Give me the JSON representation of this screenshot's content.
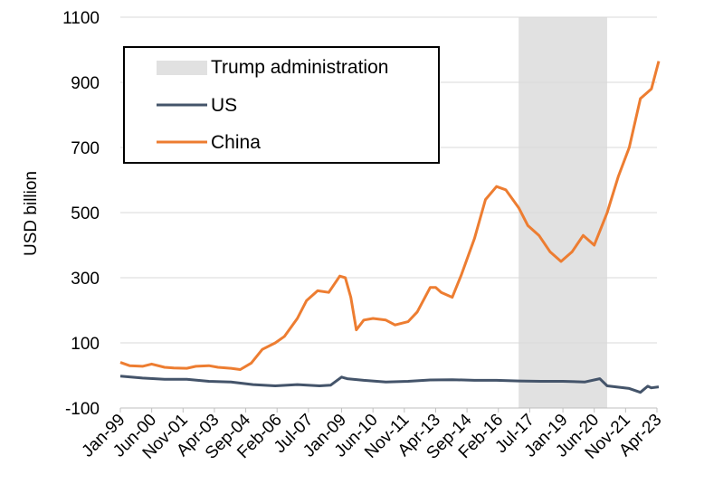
{
  "chart_data": {
    "type": "line",
    "title": "",
    "xlabel": "",
    "ylabel": "USD billion",
    "ylim": [
      -100,
      1100
    ],
    "yticks": [
      1100,
      900,
      700,
      500,
      300,
      100,
      -100
    ],
    "xlim": [
      "Jan-99",
      "Apr-23"
    ],
    "xticks": [
      "Jan-99",
      "Jun-00",
      "Nov-01",
      "Apr-03",
      "Sep-04",
      "Feb-06",
      "Jul-07",
      "Jan-09",
      "Jun-10",
      "Nov-11",
      "Apr-13",
      "Sep-14",
      "Feb-16",
      "Jul-17",
      "Jan-19",
      "Jun-20",
      "Nov-21",
      "Apr-23"
    ],
    "grid": "horizontal",
    "legend_position": "top-left",
    "shaded_period": {
      "name": "Trump administration",
      "start": "Jan-17",
      "end": "Jan-21",
      "color": "#e1e1e1"
    },
    "series": [
      {
        "name": "US",
        "color": "#44546a",
        "x": [
          "Jan-99",
          "Jan-00",
          "Jan-01",
          "Jan-02",
          "Jan-03",
          "Jan-04",
          "Jan-05",
          "Jan-06",
          "Jan-07",
          "Jan-08",
          "Jul-08",
          "Jan-09",
          "Apr-09",
          "Jan-10",
          "Jan-11",
          "Jan-12",
          "Jan-13",
          "Jan-14",
          "Jan-15",
          "Jan-16",
          "Jan-17",
          "Jan-18",
          "Jan-19",
          "Jan-20",
          "Sep-20",
          "Jan-21",
          "Jan-22",
          "Jul-22",
          "Nov-22",
          "Jan-23",
          "May-23"
        ],
        "values": [
          -2,
          -8,
          -12,
          -12,
          -18,
          -20,
          -28,
          -32,
          -28,
          -32,
          -30,
          -5,
          -10,
          -15,
          -20,
          -18,
          -14,
          -13,
          -15,
          -15,
          -17,
          -18,
          -18,
          -20,
          -10,
          -32,
          -40,
          -52,
          -33,
          -38,
          -35
        ]
      },
      {
        "name": "China",
        "color": "#ed7d31",
        "x": [
          "Jan-99",
          "Jun-99",
          "Jan-00",
          "Jun-00",
          "Jan-01",
          "Jun-01",
          "Jan-02",
          "Jun-02",
          "Jan-03",
          "Jun-03",
          "Jan-04",
          "Jun-04",
          "Dec-04",
          "Jun-05",
          "Jan-06",
          "Jun-06",
          "Jan-07",
          "Jun-07",
          "Dec-07",
          "Jun-08",
          "Dec-08",
          "Mar-09",
          "Jun-09",
          "Sep-09",
          "Jan-10",
          "Jun-10",
          "Jan-11",
          "Jun-11",
          "Jan-12",
          "Jun-12",
          "Jan-13",
          "Apr-13",
          "Jul-13",
          "Jan-14",
          "Jun-14",
          "Jan-15",
          "Jul-15",
          "Jan-16",
          "Jun-16",
          "Jan-17",
          "Jun-17",
          "Dec-17",
          "Jun-18",
          "Dec-18",
          "Jun-19",
          "Dec-19",
          "Jun-20",
          "Jan-21",
          "Jul-21",
          "Jan-22",
          "Jul-22",
          "Jan-23",
          "May-23"
        ],
        "values": [
          40,
          30,
          28,
          35,
          25,
          23,
          22,
          28,
          30,
          25,
          22,
          18,
          38,
          80,
          100,
          120,
          175,
          230,
          260,
          255,
          305,
          300,
          240,
          140,
          170,
          175,
          170,
          155,
          165,
          195,
          270,
          270,
          255,
          240,
          310,
          420,
          540,
          580,
          570,
          515,
          460,
          430,
          380,
          350,
          380,
          430,
          400,
          500,
          610,
          700,
          850,
          880,
          965
        ]
      }
    ]
  },
  "legend": {
    "items": [
      {
        "label": "Trump administration"
      },
      {
        "label": "US"
      },
      {
        "label": "China"
      }
    ]
  }
}
